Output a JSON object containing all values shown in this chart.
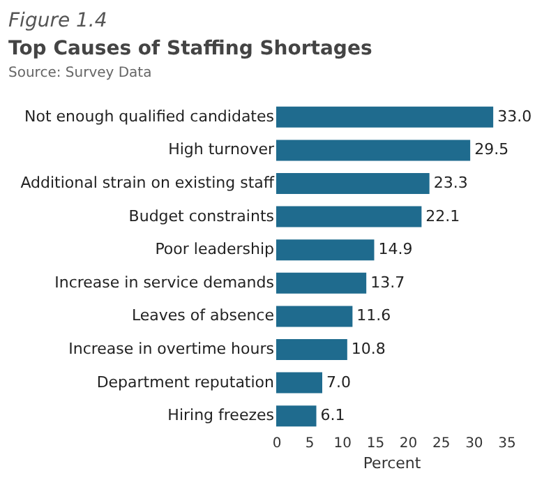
{
  "chart_data": {
    "type": "bar",
    "orientation": "horizontal",
    "title": "Top Causes of Staffing Shortages",
    "subtitle": "Source: Survey Data",
    "annotations": [
      "Figure 1.4"
    ],
    "categories": [
      "Not enough qualified candidates",
      "High turnover",
      "Additional strain on existing staff",
      "Budget constraints",
      "Poor leadership",
      "Increase in service demands",
      "Leaves of absence",
      "Increase in overtime hours",
      "Department reputation",
      "Hiring freezes"
    ],
    "values": [
      33.0,
      29.5,
      23.3,
      22.1,
      14.9,
      13.7,
      11.6,
      10.8,
      7.0,
      6.1
    ],
    "value_labels": [
      "33.0",
      "29.5",
      "23.3",
      "22.1",
      "14.9",
      "13.7",
      "11.6",
      "10.8",
      "7.0",
      "6.1"
    ],
    "color": "#1f6b8e",
    "xlabel": "Percent",
    "xlim": [
      0,
      35
    ],
    "xticks": [
      0,
      5,
      10,
      15,
      20,
      25,
      30,
      35
    ],
    "grid": false
  }
}
